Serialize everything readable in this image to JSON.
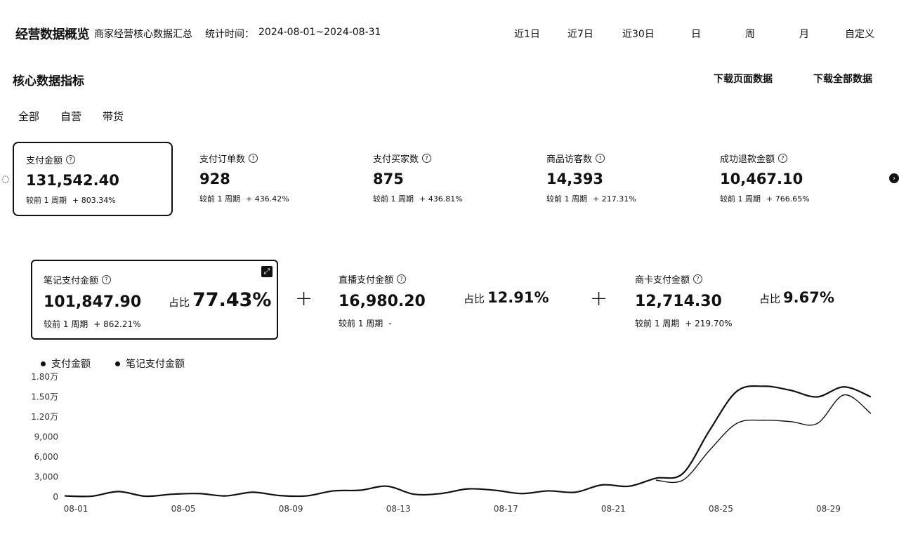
{
  "header": {
    "title": "经营数据概览",
    "subtitle": "商家经营核心数据汇总",
    "stat_label": "统计时间：",
    "stat_range": "2024-08-01~2024-08-31",
    "range_buttons": [
      "近1日",
      "近7日",
      "近30日",
      "日",
      "周",
      "月",
      "自定义"
    ]
  },
  "section": {
    "title": "核心数据指标",
    "download_page": "下载页面数据",
    "download_all": "下载全部数据",
    "filters": [
      "全部",
      "自营",
      "带货"
    ]
  },
  "metrics": [
    {
      "label": "支付金额",
      "value": "131,542.40",
      "compare_label": "较前 1 周期",
      "change": "+ 803.34%"
    },
    {
      "label": "支付订单数",
      "value": "928",
      "compare_label": "较前 1 周期",
      "change": "+ 436.42%"
    },
    {
      "label": "支付买家数",
      "value": "875",
      "compare_label": "较前 1 周期",
      "change": "+ 436.81%"
    },
    {
      "label": "商品访客数",
      "value": "14,393",
      "compare_label": "较前 1 周期",
      "change": "+ 217.31%"
    },
    {
      "label": "成功退款金额",
      "value": "10,467.10",
      "compare_label": "较前 1 周期",
      "change": "+ 766.65%"
    }
  ],
  "breakdown": [
    {
      "label": "笔记支付金额",
      "value": "101,847.90",
      "compare_label": "较前 1 周期",
      "change": "+ 862.21%",
      "share_label": "占比",
      "share": "77.43%"
    },
    {
      "label": "直播支付金额",
      "value": "16,980.20",
      "compare_label": "较前 1 周期",
      "change": "-",
      "share_label": "占比",
      "share": "12.91%"
    },
    {
      "label": "商卡支付金额",
      "value": "12,714.30",
      "compare_label": "较前 1 周期",
      "change": "+ 219.70%",
      "share_label": "占比",
      "share": "9.67%"
    }
  ],
  "operator": "+",
  "chart_data": {
    "type": "line",
    "legend": [
      "支付金额",
      "笔记支付金额"
    ],
    "y_ticks": [
      "0",
      "3,000",
      "6,000",
      "9,000",
      "1.20万",
      "1.50万",
      "1.80万"
    ],
    "ylim": [
      0,
      18000
    ],
    "x_ticks": [
      "08-01",
      "08-05",
      "08-09",
      "08-13",
      "08-17",
      "08-21",
      "08-25",
      "08-29"
    ],
    "x": [
      "08-01",
      "08-02",
      "08-03",
      "08-04",
      "08-05",
      "08-06",
      "08-07",
      "08-08",
      "08-09",
      "08-10",
      "08-11",
      "08-12",
      "08-13",
      "08-14",
      "08-15",
      "08-16",
      "08-17",
      "08-18",
      "08-19",
      "08-20",
      "08-21",
      "08-22",
      "08-23",
      "08-24",
      "08-25",
      "08-26",
      "08-27",
      "08-28",
      "08-29",
      "08-30",
      "08-31"
    ],
    "series": [
      {
        "name": "支付金额",
        "values": [
          150,
          100,
          800,
          100,
          400,
          500,
          150,
          700,
          200,
          150,
          900,
          1000,
          1600,
          400,
          500,
          1200,
          1000,
          500,
          900,
          700,
          1800,
          1600,
          2800,
          3500,
          10000,
          15800,
          16600,
          16000,
          15000,
          16500,
          15000
        ]
      },
      {
        "name": "笔记支付金额",
        "values": [
          null,
          null,
          null,
          null,
          null,
          null,
          null,
          null,
          null,
          null,
          null,
          null,
          null,
          null,
          null,
          null,
          null,
          null,
          null,
          null,
          null,
          null,
          2500,
          2500,
          7000,
          11000,
          11500,
          11300,
          11000,
          15300,
          12500
        ]
      }
    ]
  }
}
